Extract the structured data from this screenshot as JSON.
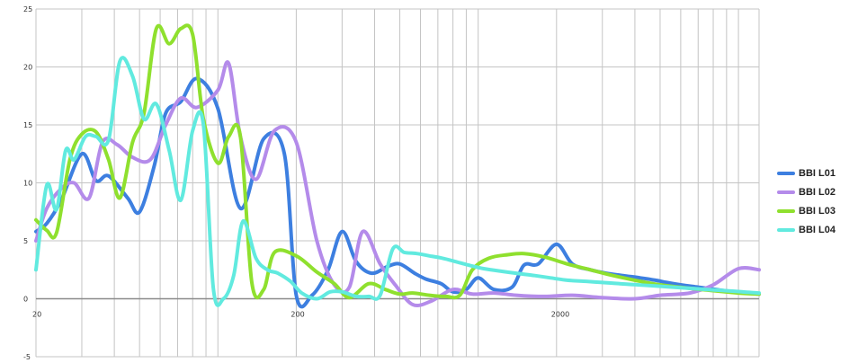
{
  "chart_data": {
    "type": "line",
    "title": "",
    "xlabel": "",
    "ylabel": "",
    "x_scale": "log",
    "xlim": [
      20,
      12000
    ],
    "ylim": [
      -5,
      25
    ],
    "x_ticks": [
      {
        "value": 20,
        "label": "20"
      },
      {
        "value": 200,
        "label": "200"
      },
      {
        "value": 2000,
        "label": "2000"
      }
    ],
    "y_ticks": [
      {
        "value": -5,
        "label": "-5"
      },
      {
        "value": 0,
        "label": "0"
      },
      {
        "value": 5,
        "label": "5"
      },
      {
        "value": 10,
        "label": "10"
      },
      {
        "value": 15,
        "label": "15"
      },
      {
        "value": 20,
        "label": "20"
      },
      {
        "value": 25,
        "label": "25"
      }
    ],
    "grid": true,
    "legend": "right",
    "series": [
      {
        "name": "BBI L01",
        "color": "#3d7fe0",
        "x": [
          20,
          22,
          25,
          30,
          34,
          38,
          45,
          50,
          57,
          63,
          72,
          83,
          100,
          122,
          150,
          180,
          200,
          230,
          265,
          300,
          340,
          390,
          450,
          500,
          570,
          630,
          720,
          800,
          900,
          1000,
          1150,
          1350,
          1500,
          1700,
          2000,
          2300,
          2700,
          3100,
          3600,
          4200,
          4800,
          5300,
          6000,
          7000,
          8200,
          9500,
          10700,
          12000
        ],
        "y": [
          5.8,
          6.5,
          8.5,
          12.5,
          10.2,
          10.6,
          8.7,
          7.5,
          11.5,
          16.0,
          17.0,
          19.0,
          16.4,
          7.8,
          13.8,
          12.5,
          0.3,
          0.3,
          2.5,
          5.8,
          3.2,
          2.2,
          2.8,
          3.0,
          2.2,
          1.7,
          1.3,
          0.6,
          0.8,
          1.8,
          0.8,
          1.0,
          2.9,
          3.0,
          4.7,
          3.0,
          2.5,
          2.2,
          2.0,
          1.8,
          1.6,
          1.4,
          1.2,
          1.0,
          0.8,
          0.6,
          0.5,
          0.4
        ]
      },
      {
        "name": "BBI L02",
        "color": "#b48bea",
        "x": [
          20,
          22,
          25,
          28,
          32,
          36,
          41,
          47,
          55,
          63,
          72,
          83,
          100,
          110,
          122,
          140,
          165,
          200,
          240,
          280,
          320,
          360,
          420,
          480,
          560,
          660,
          800,
          950,
          1150,
          1400,
          1800,
          2300,
          3000,
          4000,
          5000,
          6500,
          8000,
          10000,
          12000
        ],
        "y": [
          5.0,
          7.8,
          9.5,
          10.0,
          8.7,
          13.5,
          13.3,
          12.2,
          12.0,
          15.0,
          17.3,
          16.5,
          18.0,
          20.3,
          14.0,
          10.3,
          14.5,
          13.5,
          5.0,
          1.2,
          1.0,
          5.8,
          3.0,
          1.2,
          -0.5,
          -0.2,
          0.8,
          0.4,
          0.5,
          0.3,
          0.2,
          0.3,
          0.1,
          0.0,
          0.3,
          0.5,
          1.2,
          2.6,
          2.5
        ]
      },
      {
        "name": "BBI L03",
        "color": "#8fe02e",
        "x": [
          20,
          22,
          24,
          27,
          30,
          34,
          38,
          42,
          47,
          52,
          58,
          65,
          72,
          80,
          88,
          100,
          110,
          122,
          135,
          150,
          165,
          200,
          240,
          280,
          320,
          380,
          440,
          500,
          560,
          650,
          750,
          850,
          950,
          1100,
          1300,
          1500,
          1800,
          2200,
          2700,
          3300,
          4000,
          5000,
          6500,
          8000,
          10000,
          12000
        ],
        "y": [
          6.8,
          5.9,
          5.7,
          12.0,
          14.2,
          14.4,
          12.0,
          8.7,
          13.5,
          16.0,
          23.3,
          22.0,
          23.3,
          22.8,
          15.5,
          11.7,
          14.0,
          14.0,
          1.4,
          0.8,
          4.0,
          3.7,
          2.3,
          1.3,
          0.1,
          1.3,
          0.8,
          0.4,
          0.5,
          0.3,
          0.2,
          0.3,
          2.5,
          3.5,
          3.8,
          3.9,
          3.6,
          3.0,
          2.5,
          2.0,
          1.6,
          1.2,
          0.9,
          0.7,
          0.5,
          0.4
        ]
      },
      {
        "name": "BBI L04",
        "color": "#61eadf",
        "x": [
          20,
          22,
          24,
          26,
          28,
          31,
          34,
          38,
          42,
          47,
          52,
          58,
          65,
          72,
          80,
          88,
          96,
          105,
          115,
          125,
          140,
          155,
          170,
          190,
          210,
          240,
          270,
          300,
          340,
          380,
          420,
          470,
          520,
          580,
          650,
          730,
          820,
          920,
          1050,
          1200,
          1400,
          1650,
          1900,
          2200,
          2600,
          3000,
          3500,
          4100,
          4800,
          5600,
          6500,
          7600,
          8900,
          10300,
          12000
        ],
        "y": [
          2.5,
          9.8,
          7.7,
          12.8,
          12.0,
          14.0,
          14.0,
          13.7,
          20.5,
          19.2,
          15.5,
          16.8,
          12.8,
          8.5,
          14.5,
          15.0,
          0.9,
          0.0,
          2.0,
          6.7,
          3.5,
          2.5,
          2.2,
          1.5,
          0.5,
          0.0,
          0.6,
          0.6,
          0.2,
          0.2,
          0.3,
          4.3,
          4.0,
          3.9,
          3.7,
          3.5,
          3.2,
          2.9,
          2.6,
          2.4,
          2.2,
          2.0,
          1.8,
          1.6,
          1.5,
          1.4,
          1.3,
          1.2,
          1.1,
          1.0,
          0.9,
          0.8,
          0.7,
          0.6,
          0.5
        ]
      }
    ]
  }
}
